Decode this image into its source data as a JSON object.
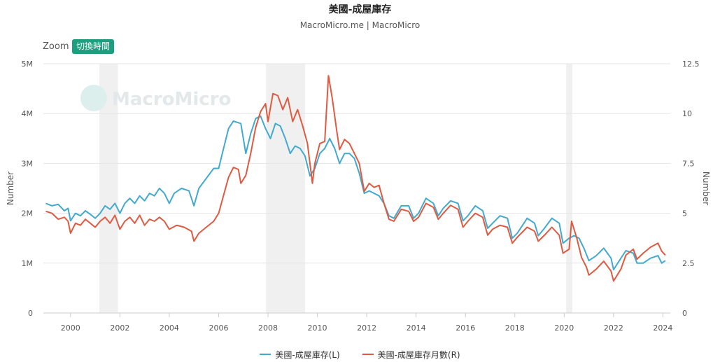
{
  "header": {
    "title": "美國-成屋庫存",
    "subtitle": "MacroMicro.me | MacroMicro"
  },
  "toolbar": {
    "zoom_label": "Zoom",
    "toggle_label": "切換時間"
  },
  "watermark": "MacroMicro",
  "colors": {
    "blue": "#42a9cf",
    "red": "#df5a40",
    "recession": "#f0f0f0"
  },
  "chart_data": {
    "type": "line",
    "title": "美國-成屋庫存",
    "x_ticks": [
      "2000",
      "2002",
      "2004",
      "2006",
      "2008",
      "2010",
      "2012",
      "2014",
      "2016",
      "2018",
      "2020",
      "2022",
      "2024"
    ],
    "x_range": [
      1998.9,
      2024.3
    ],
    "y_left": {
      "label": "Number",
      "range": [
        0,
        5000000
      ],
      "tick_labels": [
        "0",
        "1M",
        "2M",
        "3M",
        "4M",
        "5M"
      ],
      "ticks": [
        0,
        1000000,
        2000000,
        3000000,
        4000000,
        5000000
      ]
    },
    "y_right": {
      "label": "Number",
      "range": [
        0,
        12.5
      ],
      "tick_labels": [
        "0",
        "2.5",
        "5",
        "7.5",
        "10",
        "12.5"
      ],
      "ticks": [
        0,
        2.5,
        5,
        7.5,
        10,
        12.5
      ]
    },
    "recessions": [
      [
        2001.17,
        2001.92
      ],
      [
        2007.92,
        2009.5
      ],
      [
        2020.08,
        2020.33
      ]
    ],
    "series": [
      {
        "name": "美國-成屋庫存(L)",
        "axis": "left",
        "color": "#42a9cf",
        "points": [
          [
            1999.0,
            2200000
          ],
          [
            1999.25,
            2150000
          ],
          [
            1999.5,
            2180000
          ],
          [
            1999.75,
            2050000
          ],
          [
            1999.9,
            2100000
          ],
          [
            2000.0,
            1850000
          ],
          [
            2000.2,
            2000000
          ],
          [
            2000.4,
            1950000
          ],
          [
            2000.6,
            2050000
          ],
          [
            2000.8,
            1980000
          ],
          [
            2001.0,
            1900000
          ],
          [
            2001.2,
            2000000
          ],
          [
            2001.4,
            2150000
          ],
          [
            2001.6,
            2080000
          ],
          [
            2001.8,
            2200000
          ],
          [
            2002.0,
            2000000
          ],
          [
            2002.2,
            2200000
          ],
          [
            2002.4,
            2300000
          ],
          [
            2002.6,
            2200000
          ],
          [
            2002.8,
            2350000
          ],
          [
            2003.0,
            2250000
          ],
          [
            2003.2,
            2400000
          ],
          [
            2003.4,
            2350000
          ],
          [
            2003.6,
            2500000
          ],
          [
            2003.8,
            2400000
          ],
          [
            2004.0,
            2200000
          ],
          [
            2004.2,
            2400000
          ],
          [
            2004.5,
            2500000
          ],
          [
            2004.8,
            2450000
          ],
          [
            2005.0,
            2150000
          ],
          [
            2005.2,
            2500000
          ],
          [
            2005.5,
            2700000
          ],
          [
            2005.8,
            2900000
          ],
          [
            2006.0,
            2900000
          ],
          [
            2006.2,
            3300000
          ],
          [
            2006.4,
            3700000
          ],
          [
            2006.6,
            3850000
          ],
          [
            2006.9,
            3800000
          ],
          [
            2007.1,
            3200000
          ],
          [
            2007.3,
            3600000
          ],
          [
            2007.5,
            3900000
          ],
          [
            2007.7,
            3950000
          ],
          [
            2007.9,
            3700000
          ],
          [
            2008.1,
            3500000
          ],
          [
            2008.3,
            3800000
          ],
          [
            2008.5,
            3750000
          ],
          [
            2008.7,
            3500000
          ],
          [
            2008.9,
            3200000
          ],
          [
            2009.1,
            3350000
          ],
          [
            2009.3,
            3300000
          ],
          [
            2009.5,
            3150000
          ],
          [
            2009.7,
            2750000
          ],
          [
            2009.9,
            2900000
          ],
          [
            2010.1,
            3200000
          ],
          [
            2010.3,
            3300000
          ],
          [
            2010.5,
            3500000
          ],
          [
            2010.7,
            3300000
          ],
          [
            2010.9,
            3000000
          ],
          [
            2011.1,
            3200000
          ],
          [
            2011.3,
            3200000
          ],
          [
            2011.5,
            3100000
          ],
          [
            2011.7,
            2800000
          ],
          [
            2011.9,
            2400000
          ],
          [
            2012.1,
            2450000
          ],
          [
            2012.3,
            2400000
          ],
          [
            2012.5,
            2350000
          ],
          [
            2012.7,
            2200000
          ],
          [
            2012.9,
            1950000
          ],
          [
            2013.1,
            1900000
          ],
          [
            2013.4,
            2150000
          ],
          [
            2013.7,
            2150000
          ],
          [
            2013.9,
            1900000
          ],
          [
            2014.1,
            2000000
          ],
          [
            2014.4,
            2300000
          ],
          [
            2014.7,
            2200000
          ],
          [
            2014.9,
            1950000
          ],
          [
            2015.1,
            2100000
          ],
          [
            2015.4,
            2250000
          ],
          [
            2015.7,
            2200000
          ],
          [
            2015.9,
            1850000
          ],
          [
            2016.1,
            1950000
          ],
          [
            2016.4,
            2150000
          ],
          [
            2016.7,
            2050000
          ],
          [
            2016.9,
            1700000
          ],
          [
            2017.1,
            1800000
          ],
          [
            2017.4,
            1950000
          ],
          [
            2017.7,
            1900000
          ],
          [
            2017.9,
            1500000
          ],
          [
            2018.1,
            1600000
          ],
          [
            2018.5,
            1900000
          ],
          [
            2018.8,
            1800000
          ],
          [
            2018.95,
            1550000
          ],
          [
            2019.2,
            1700000
          ],
          [
            2019.5,
            1900000
          ],
          [
            2019.8,
            1800000
          ],
          [
            2019.95,
            1400000
          ],
          [
            2020.2,
            1500000
          ],
          [
            2020.4,
            1550000
          ],
          [
            2020.6,
            1500000
          ],
          [
            2020.8,
            1300000
          ],
          [
            2021.0,
            1050000
          ],
          [
            2021.3,
            1150000
          ],
          [
            2021.6,
            1300000
          ],
          [
            2021.9,
            1100000
          ],
          [
            2022.0,
            870000
          ],
          [
            2022.3,
            1100000
          ],
          [
            2022.5,
            1250000
          ],
          [
            2022.8,
            1200000
          ],
          [
            2022.95,
            1000000
          ],
          [
            2023.2,
            1000000
          ],
          [
            2023.5,
            1100000
          ],
          [
            2023.8,
            1150000
          ],
          [
            2023.95,
            1000000
          ],
          [
            2024.1,
            1050000
          ]
        ]
      },
      {
        "name": "美國-成屋庫存月數(R)",
        "axis": "right",
        "color": "#df5a40",
        "points": [
          [
            1999.0,
            5.1
          ],
          [
            1999.25,
            5.0
          ],
          [
            1999.5,
            4.7
          ],
          [
            1999.75,
            4.8
          ],
          [
            1999.9,
            4.6
          ],
          [
            2000.0,
            4.0
          ],
          [
            2000.2,
            4.5
          ],
          [
            2000.4,
            4.4
          ],
          [
            2000.6,
            4.7
          ],
          [
            2000.8,
            4.5
          ],
          [
            2001.0,
            4.3
          ],
          [
            2001.2,
            4.6
          ],
          [
            2001.4,
            4.8
          ],
          [
            2001.6,
            4.5
          ],
          [
            2001.8,
            4.9
          ],
          [
            2002.0,
            4.2
          ],
          [
            2002.2,
            4.6
          ],
          [
            2002.4,
            4.8
          ],
          [
            2002.6,
            4.5
          ],
          [
            2002.8,
            4.9
          ],
          [
            2003.0,
            4.4
          ],
          [
            2003.2,
            4.7
          ],
          [
            2003.4,
            4.6
          ],
          [
            2003.6,
            4.8
          ],
          [
            2003.8,
            4.6
          ],
          [
            2004.0,
            4.2
          ],
          [
            2004.3,
            4.4
          ],
          [
            2004.6,
            4.3
          ],
          [
            2004.9,
            4.1
          ],
          [
            2005.0,
            3.6
          ],
          [
            2005.2,
            4.0
          ],
          [
            2005.5,
            4.3
          ],
          [
            2005.8,
            4.6
          ],
          [
            2006.0,
            5.0
          ],
          [
            2006.2,
            5.9
          ],
          [
            2006.4,
            6.8
          ],
          [
            2006.6,
            7.3
          ],
          [
            2006.8,
            7.2
          ],
          [
            2006.9,
            6.5
          ],
          [
            2007.1,
            6.9
          ],
          [
            2007.3,
            8.0
          ],
          [
            2007.5,
            9.3
          ],
          [
            2007.7,
            10.1
          ],
          [
            2007.9,
            10.5
          ],
          [
            2008.0,
            9.6
          ],
          [
            2008.2,
            11.0
          ],
          [
            2008.4,
            10.9
          ],
          [
            2008.6,
            10.2
          ],
          [
            2008.8,
            10.8
          ],
          [
            2009.0,
            9.6
          ],
          [
            2009.2,
            10.2
          ],
          [
            2009.4,
            9.4
          ],
          [
            2009.6,
            8.5
          ],
          [
            2009.8,
            6.5
          ],
          [
            2009.9,
            7.5
          ],
          [
            2010.1,
            8.5
          ],
          [
            2010.3,
            8.6
          ],
          [
            2010.45,
            11.9
          ],
          [
            2010.6,
            10.8
          ],
          [
            2010.8,
            9.0
          ],
          [
            2010.9,
            8.2
          ],
          [
            2011.1,
            8.7
          ],
          [
            2011.3,
            8.5
          ],
          [
            2011.5,
            8.0
          ],
          [
            2011.7,
            7.5
          ],
          [
            2011.9,
            6.1
          ],
          [
            2012.1,
            6.5
          ],
          [
            2012.3,
            6.3
          ],
          [
            2012.5,
            6.4
          ],
          [
            2012.7,
            5.5
          ],
          [
            2012.9,
            4.7
          ],
          [
            2013.1,
            4.6
          ],
          [
            2013.4,
            5.2
          ],
          [
            2013.7,
            5.1
          ],
          [
            2013.9,
            4.6
          ],
          [
            2014.1,
            4.8
          ],
          [
            2014.4,
            5.5
          ],
          [
            2014.7,
            5.3
          ],
          [
            2014.9,
            4.7
          ],
          [
            2015.1,
            5.0
          ],
          [
            2015.4,
            5.4
          ],
          [
            2015.7,
            5.2
          ],
          [
            2015.9,
            4.3
          ],
          [
            2016.1,
            4.6
          ],
          [
            2016.4,
            5.0
          ],
          [
            2016.7,
            4.8
          ],
          [
            2016.9,
            3.9
          ],
          [
            2017.1,
            4.2
          ],
          [
            2017.4,
            4.4
          ],
          [
            2017.7,
            4.3
          ],
          [
            2017.9,
            3.5
          ],
          [
            2018.1,
            3.8
          ],
          [
            2018.5,
            4.3
          ],
          [
            2018.8,
            4.1
          ],
          [
            2018.95,
            3.6
          ],
          [
            2019.2,
            3.9
          ],
          [
            2019.5,
            4.3
          ],
          [
            2019.8,
            3.9
          ],
          [
            2019.95,
            3.0
          ],
          [
            2020.2,
            3.2
          ],
          [
            2020.3,
            4.6
          ],
          [
            2020.5,
            3.8
          ],
          [
            2020.7,
            2.8
          ],
          [
            2020.9,
            2.3
          ],
          [
            2021.0,
            1.9
          ],
          [
            2021.3,
            2.2
          ],
          [
            2021.6,
            2.6
          ],
          [
            2021.9,
            2.1
          ],
          [
            2022.0,
            1.6
          ],
          [
            2022.3,
            2.2
          ],
          [
            2022.5,
            2.9
          ],
          [
            2022.8,
            3.2
          ],
          [
            2022.95,
            2.7
          ],
          [
            2023.2,
            3.0
          ],
          [
            2023.5,
            3.3
          ],
          [
            2023.8,
            3.5
          ],
          [
            2023.95,
            3.1
          ],
          [
            2024.1,
            2.9
          ]
        ]
      }
    ]
  }
}
